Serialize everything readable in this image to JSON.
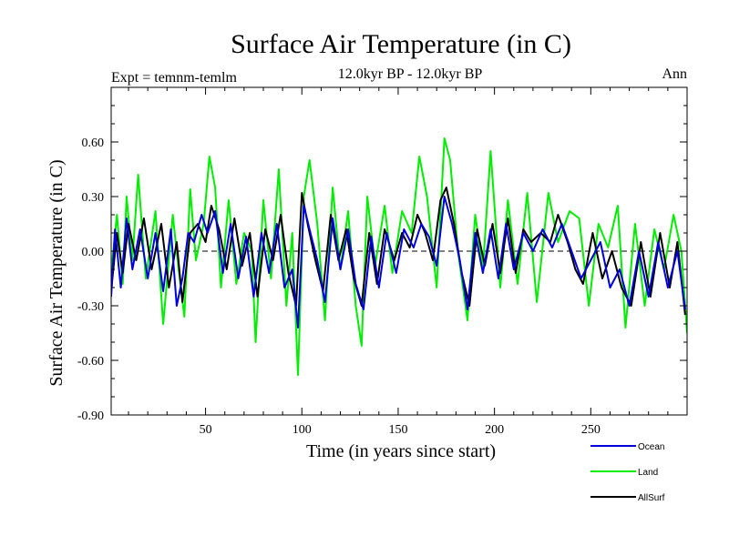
{
  "chart_data": {
    "type": "line",
    "title": "Surface Air Temperature (in C)",
    "subtitle": "12.0kyr BP - 12.0kyr BP",
    "expt_label": "Expt = temnm-temlm",
    "season_label": "Ann",
    "xlabel": "Time (in years since start)",
    "ylabel": "Surface Air Temperature (in C)",
    "xlim": [
      1,
      300
    ],
    "ylim": [
      -0.9,
      0.9
    ],
    "x_ticks": [
      50,
      100,
      150,
      200,
      250
    ],
    "x_tick_labels": [
      "50",
      "100",
      "150",
      "200",
      "250"
    ],
    "y_ticks": [
      -0.9,
      -0.6,
      -0.3,
      0.0,
      0.3,
      0.6
    ],
    "y_tick_labels": [
      "-0.90",
      "-0.60",
      "-0.30",
      "0.00",
      "0.30",
      "0.60"
    ],
    "zero_line": true,
    "legend_position": "below-right",
    "series": [
      {
        "name": "Land",
        "color": "#00ee00",
        "x": [
          1,
          4,
          7,
          9,
          12,
          15,
          19,
          24,
          28,
          33,
          36,
          39,
          42,
          45,
          49,
          52,
          55,
          58,
          62,
          66,
          70,
          74,
          76,
          80,
          84,
          88,
          92,
          95,
          98,
          101,
          104,
          108,
          112,
          116,
          120,
          124,
          128,
          131,
          134,
          138,
          143,
          147,
          152,
          157,
          161,
          165,
          170,
          174,
          177,
          181,
          186,
          190,
          194,
          198,
          203,
          207,
          212,
          217,
          222,
          228,
          233,
          239,
          244,
          249,
          254,
          259,
          264,
          268,
          273,
          278,
          283,
          288,
          293,
          297,
          300
        ],
        "values": [
          -0.12,
          0.2,
          -0.18,
          0.3,
          -0.05,
          0.42,
          -0.15,
          0.22,
          -0.4,
          0.2,
          -0.1,
          -0.36,
          0.34,
          -0.05,
          0.15,
          0.52,
          0.35,
          -0.2,
          0.28,
          -0.18,
          0.1,
          0.0,
          -0.5,
          0.28,
          -0.15,
          0.45,
          -0.3,
          0.1,
          -0.68,
          0.3,
          0.5,
          0.15,
          -0.38,
          0.35,
          -0.1,
          0.22,
          -0.3,
          -0.52,
          0.3,
          -0.08,
          0.25,
          -0.12,
          0.22,
          0.1,
          0.52,
          0.3,
          -0.2,
          0.62,
          0.5,
          0.0,
          -0.38,
          0.2,
          -0.1,
          0.55,
          -0.2,
          0.28,
          -0.18,
          0.32,
          -0.28,
          0.32,
          0.05,
          0.22,
          0.18,
          -0.3,
          0.15,
          0.02,
          0.25,
          -0.42,
          0.15,
          -0.3,
          0.12,
          -0.1,
          0.2,
          0.0,
          -0.45
        ]
      },
      {
        "name": "AllSurf",
        "color": "#000000",
        "x": [
          1,
          4,
          7,
          10,
          14,
          18,
          22,
          27,
          31,
          35,
          38,
          42,
          46,
          50,
          53,
          57,
          61,
          65,
          69,
          73,
          77,
          81,
          85,
          89,
          93,
          97,
          100,
          103,
          107,
          111,
          115,
          119,
          123,
          127,
          131,
          135,
          139,
          143,
          148,
          152,
          156,
          160,
          164,
          168,
          172,
          175,
          179,
          183,
          187,
          191,
          195,
          199,
          203,
          207,
          211,
          215,
          219,
          224,
          229,
          233,
          238,
          242,
          246,
          251,
          256,
          261,
          266,
          271,
          276,
          281,
          286,
          291,
          295,
          299
        ],
        "values": [
          -0.22,
          0.1,
          -0.12,
          0.15,
          -0.05,
          0.18,
          -0.1,
          0.15,
          -0.2,
          0.05,
          -0.28,
          0.1,
          0.15,
          0.05,
          0.25,
          0.12,
          -0.1,
          0.18,
          -0.08,
          0.1,
          -0.25,
          0.12,
          -0.05,
          0.2,
          -0.12,
          -0.3,
          0.32,
          0.15,
          -0.05,
          -0.22,
          0.2,
          -0.05,
          0.12,
          -0.15,
          -0.3,
          0.1,
          -0.18,
          0.12,
          -0.05,
          0.1,
          0.02,
          0.2,
          0.1,
          -0.05,
          0.28,
          0.35,
          0.15,
          -0.12,
          -0.3,
          0.12,
          -0.08,
          0.15,
          -0.12,
          0.18,
          -0.12,
          0.12,
          0.05,
          0.1,
          0.05,
          0.2,
          0.05,
          -0.1,
          -0.18,
          0.1,
          -0.15,
          0.0,
          -0.2,
          -0.3,
          0.05,
          -0.25,
          0.1,
          -0.2,
          0.05,
          -0.35
        ]
      },
      {
        "name": "Ocean",
        "color": "#0000dd",
        "x": [
          1,
          3,
          6,
          9,
          12,
          16,
          20,
          24,
          28,
          32,
          35,
          38,
          41,
          44,
          48,
          51,
          55,
          59,
          63,
          67,
          71,
          75,
          79,
          83,
          87,
          91,
          95,
          98,
          101,
          104,
          108,
          112,
          116,
          120,
          124,
          128,
          132,
          136,
          140,
          144,
          149,
          153,
          158,
          162,
          166,
          170,
          174,
          178,
          182,
          186,
          190,
          194,
          198,
          202,
          206,
          210,
          215,
          220,
          225,
          230,
          235,
          240,
          245,
          250,
          255,
          260,
          265,
          270,
          275,
          280,
          285,
          290,
          295,
          299
        ],
        "values": [
          -0.25,
          0.12,
          -0.2,
          0.18,
          -0.1,
          0.12,
          -0.15,
          0.1,
          -0.22,
          0.12,
          -0.3,
          -0.15,
          0.1,
          0.05,
          0.2,
          0.1,
          0.22,
          -0.12,
          0.15,
          -0.15,
          0.08,
          -0.25,
          0.1,
          -0.12,
          0.15,
          -0.2,
          -0.1,
          -0.42,
          0.25,
          0.12,
          -0.05,
          -0.28,
          0.18,
          -0.1,
          0.12,
          -0.18,
          -0.32,
          0.08,
          -0.2,
          0.1,
          -0.12,
          0.12,
          0.02,
          0.15,
          0.08,
          -0.08,
          0.3,
          0.15,
          -0.05,
          -0.32,
          0.1,
          -0.12,
          0.12,
          -0.15,
          0.15,
          -0.1,
          0.1,
          0.0,
          0.12,
          0.02,
          0.15,
          0.0,
          -0.15,
          -0.05,
          0.05,
          -0.2,
          -0.1,
          -0.3,
          0.0,
          -0.25,
          0.05,
          -0.2,
          0.0,
          -0.32
        ]
      }
    ],
    "legend_order": [
      "Ocean",
      "Land",
      "AllSurf"
    ]
  }
}
